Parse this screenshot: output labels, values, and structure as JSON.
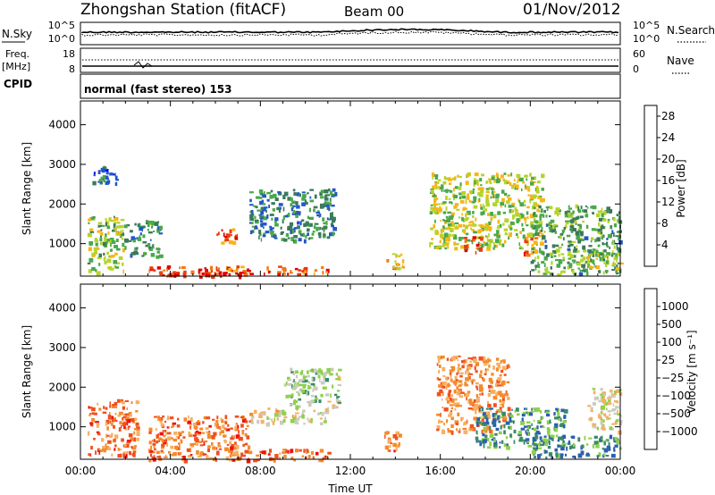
{
  "header": {
    "station": "Zhongshan Station (fitACF)",
    "beam": "Beam 00",
    "date": "01/Nov/2012"
  },
  "noise_panel": {
    "left_label": "N.Sky",
    "left_ticks": [
      "10^5",
      "10^0"
    ],
    "right_ticks": [
      "10^5",
      "10^0"
    ],
    "right_label": "N.Search"
  },
  "freq_panel": {
    "left_label_line1": "Freq.",
    "left_label_line2": "[MHz]",
    "left_ticks": [
      "18",
      "8"
    ],
    "right_ticks": [
      "60",
      "0"
    ],
    "right_label": "Nave"
  },
  "cpid_panel": {
    "label": "CPID",
    "mode_text": "normal (fast stereo) 153"
  },
  "chart_data": [
    {
      "type": "heatmap",
      "name": "power",
      "ylabel": "Slant Range [km]",
      "yticks": [
        "4000",
        "3000",
        "2000",
        "1000"
      ],
      "ytick_values": [
        4000,
        3000,
        2000,
        1000
      ],
      "ylim": [
        180,
        4600
      ],
      "xlabel": "",
      "xticks": [],
      "xlim": [
        0,
        24
      ],
      "colorbar": {
        "label": "Power [dB]",
        "ticks": [
          "28",
          "24",
          "20",
          "16",
          "12",
          "8",
          "4"
        ],
        "tick_values": [
          28,
          24,
          20,
          16,
          12,
          8,
          4
        ],
        "range": [
          0,
          30
        ],
        "colors": [
          "#0000ff",
          "#2255cc",
          "#3a7a5a",
          "#4ba84b",
          "#b5d42a",
          "#f7b516",
          "#f07a10",
          "#ea3b10",
          "#e00000"
        ]
      },
      "regions": [
        {
          "t": [
            0.3,
            1.9
          ],
          "r": [
            300,
            1700
          ],
          "level": 0.45
        },
        {
          "t": [
            0.5,
            1.6
          ],
          "r": [
            2500,
            3000
          ],
          "level": 0.2
        },
        {
          "t": [
            1.9,
            3.5
          ],
          "r": [
            700,
            1600
          ],
          "level": 0.3
        },
        {
          "t": [
            3.0,
            11.0
          ],
          "r": [
            250,
            450
          ],
          "level": 0.85
        },
        {
          "t": [
            3.5,
            7.5
          ],
          "r": [
            180,
            300
          ],
          "level": 0.95
        },
        {
          "t": [
            6.0,
            7.0
          ],
          "r": [
            1000,
            1400
          ],
          "level": 0.8
        },
        {
          "t": [
            7.5,
            11.3
          ],
          "r": [
            1100,
            2400
          ],
          "level": 0.25
        },
        {
          "t": [
            13.5,
            14.3
          ],
          "r": [
            400,
            800
          ],
          "level": 0.65
        },
        {
          "t": [
            15.5,
            20.5
          ],
          "r": [
            900,
            2800
          ],
          "level": 0.5
        },
        {
          "t": [
            17.0,
            17.8
          ],
          "r": [
            800,
            1200
          ],
          "level": 0.85
        },
        {
          "t": [
            19.7,
            20.2
          ],
          "r": [
            700,
            1200
          ],
          "level": 0.8
        },
        {
          "t": [
            20.0,
            24.0
          ],
          "r": [
            250,
            2000
          ],
          "level": 0.35
        },
        {
          "t": [
            22.5,
            24.0
          ],
          "r": [
            400,
            800
          ],
          "level": 0.5
        }
      ]
    },
    {
      "type": "heatmap",
      "name": "velocity",
      "ylabel": "Slant Range [km]",
      "yticks": [
        "4000",
        "3000",
        "2000",
        "1000"
      ],
      "ytick_values": [
        4000,
        3000,
        2000,
        1000
      ],
      "ylim": [
        180,
        4600
      ],
      "xlabel": "Time UT",
      "xticks": [
        "00:00",
        "04:00",
        "08:00",
        "12:00",
        "16:00",
        "20:00",
        "00:00"
      ],
      "xtick_values": [
        0,
        4,
        8,
        12,
        16,
        20,
        24
      ],
      "xlim": [
        0,
        24
      ],
      "colorbar": {
        "label": "Velocity [m s⁻¹]",
        "ticks": [
          "1000",
          "500",
          "100",
          "25",
          "−25",
          "−100",
          "−500",
          "−1000"
        ],
        "range": [
          -1200,
          1200
        ],
        "colors": [
          "#ee1010",
          "#f05020",
          "#f58a2a",
          "#f6b064",
          "#cbcbc0",
          "#8ed14a",
          "#3a8a6a",
          "#2a5fb0",
          "#1a3fb8"
        ]
      },
      "regions": [
        {
          "t": [
            0.3,
            2.5
          ],
          "r": [
            300,
            1700
          ],
          "level": 0.2
        },
        {
          "t": [
            3.0,
            11.0
          ],
          "r": [
            180,
            450
          ],
          "level": 0.2
        },
        {
          "t": [
            3.0,
            7.5
          ],
          "r": [
            450,
            1300
          ],
          "level": 0.2
        },
        {
          "t": [
            7.5,
            11.0
          ],
          "r": [
            1100,
            1500
          ],
          "level": 0.45
        },
        {
          "t": [
            9.0,
            11.5
          ],
          "r": [
            1500,
            2500
          ],
          "level": 0.6
        },
        {
          "t": [
            13.5,
            14.3
          ],
          "r": [
            400,
            900
          ],
          "level": 0.2
        },
        {
          "t": [
            15.8,
            19.0
          ],
          "r": [
            900,
            2800
          ],
          "level": 0.25
        },
        {
          "t": [
            17.5,
            21.5
          ],
          "r": [
            500,
            1500
          ],
          "level": 0.75
        },
        {
          "t": [
            20.0,
            24.0
          ],
          "r": [
            250,
            800
          ],
          "level": 0.75
        },
        {
          "t": [
            22.5,
            24.0
          ],
          "r": [
            900,
            2000
          ],
          "level": 0.5
        }
      ]
    }
  ]
}
